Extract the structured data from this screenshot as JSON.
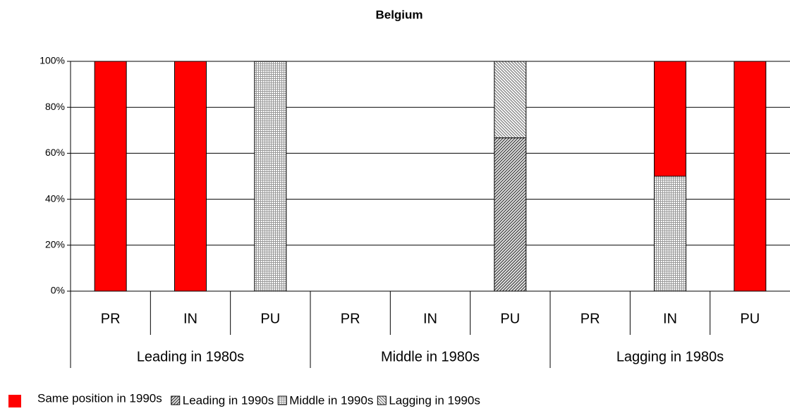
{
  "chart_data": {
    "type": "stacked_bar",
    "title": "Belgium",
    "categories": [
      "PR",
      "IN",
      "PU",
      "PR",
      "IN",
      "PU",
      "PR",
      "IN",
      "PU"
    ],
    "groups": [
      "Leading in 1980s",
      "Middle in 1980s",
      "Lagging in 1980s"
    ],
    "series": [
      {
        "name": "Same position in 1990s",
        "color": "#ff0000",
        "pattern": "solid",
        "values": [
          100,
          100,
          0,
          0,
          0,
          0,
          0,
          50,
          100
        ]
      },
      {
        "name": "Leading in 1990s",
        "color": "#555555",
        "pattern": "diagonal-dense",
        "values": [
          0,
          0,
          0,
          0,
          0,
          66.7,
          0,
          0,
          0
        ]
      },
      {
        "name": "Middle in 1990s",
        "color": "#777777",
        "pattern": "grid",
        "values": [
          0,
          0,
          100,
          0,
          0,
          0,
          0,
          50,
          0
        ]
      },
      {
        "name": "Lagging in 1990s",
        "color": "#777777",
        "pattern": "diagonal",
        "values": [
          0,
          0,
          0,
          0,
          0,
          33.3,
          0,
          0,
          0
        ]
      }
    ],
    "ylim": [
      0,
      100
    ],
    "yticks": [
      {
        "value": 0,
        "label": "0%"
      },
      {
        "value": 20,
        "label": "20%"
      },
      {
        "value": 40,
        "label": "40%"
      },
      {
        "value": 60,
        "label": "60%"
      },
      {
        "value": 80,
        "label": "80%"
      },
      {
        "value": 100,
        "label": "100%"
      }
    ],
    "grid": true
  }
}
